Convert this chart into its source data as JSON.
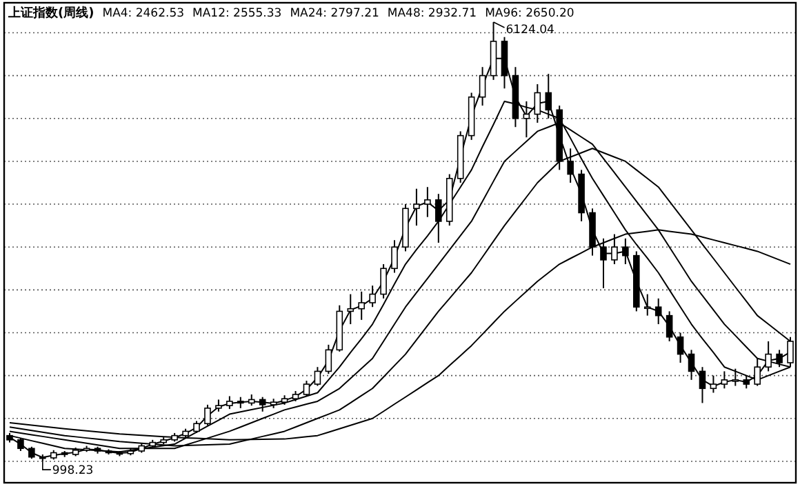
{
  "chart_data": {
    "type": "candlestick",
    "title": "上证指数(周线)",
    "categories": [
      null,
      null,
      null,
      null,
      null,
      null,
      null,
      null,
      null,
      null,
      null,
      null,
      null,
      null,
      null,
      null,
      null,
      null,
      null,
      null,
      null,
      null,
      null,
      null,
      null,
      null,
      null,
      null,
      null,
      null,
      null,
      null,
      null,
      null,
      null,
      null,
      null,
      null,
      null,
      null,
      null,
      null,
      null,
      null,
      null,
      null,
      null,
      null,
      null,
      null,
      null,
      null,
      null,
      null,
      null,
      null,
      null,
      null,
      null,
      null,
      null,
      null,
      null,
      null,
      null,
      null,
      null,
      null,
      null,
      null,
      null,
      null
    ],
    "color": "#000000",
    "ohlc": [
      [
        1300,
        1330,
        1220,
        1250
      ],
      [
        1250,
        1270,
        1120,
        1150
      ],
      [
        1150,
        1170,
        1030,
        1050
      ],
      [
        1050,
        1080,
        998.23,
        1040
      ],
      [
        1040,
        1130,
        1020,
        1100
      ],
      [
        1100,
        1120,
        1050,
        1080
      ],
      [
        1080,
        1160,
        1060,
        1130
      ],
      [
        1130,
        1180,
        1110,
        1150
      ],
      [
        1150,
        1170,
        1090,
        1120
      ],
      [
        1120,
        1140,
        1080,
        1100
      ],
      [
        1100,
        1120,
        1060,
        1090
      ],
      [
        1090,
        1150,
        1070,
        1120
      ],
      [
        1120,
        1210,
        1100,
        1180
      ],
      [
        1180,
        1250,
        1160,
        1220
      ],
      [
        1220,
        1280,
        1200,
        1250
      ],
      [
        1250,
        1330,
        1230,
        1300
      ],
      [
        1300,
        1380,
        1280,
        1350
      ],
      [
        1350,
        1470,
        1330,
        1440
      ],
      [
        1440,
        1660,
        1420,
        1620
      ],
      [
        1620,
        1720,
        1580,
        1650
      ],
      [
        1650,
        1760,
        1610,
        1700
      ],
      [
        1700,
        1750,
        1620,
        1680
      ],
      [
        1680,
        1780,
        1650,
        1720
      ],
      [
        1720,
        1750,
        1580,
        1660
      ],
      [
        1660,
        1730,
        1620,
        1690
      ],
      [
        1690,
        1770,
        1660,
        1730
      ],
      [
        1730,
        1820,
        1700,
        1780
      ],
      [
        1780,
        1940,
        1760,
        1900
      ],
      [
        1900,
        2100,
        1880,
        2050
      ],
      [
        2050,
        2360,
        2020,
        2300
      ],
      [
        2300,
        2820,
        2280,
        2750
      ],
      [
        2750,
        2950,
        2600,
        2780
      ],
      [
        2780,
        2980,
        2650,
        2850
      ],
      [
        2850,
        3050,
        2800,
        2950
      ],
      [
        2950,
        3300,
        2900,
        3250
      ],
      [
        3250,
        3580,
        3200,
        3500
      ],
      [
        3500,
        4000,
        3450,
        3950
      ],
      [
        3950,
        4180,
        3750,
        4000
      ],
      [
        4000,
        4200,
        3850,
        4050
      ],
      [
        4050,
        4120,
        3550,
        3800
      ],
      [
        3800,
        4350,
        3750,
        4300
      ],
      [
        4300,
        4850,
        4250,
        4800
      ],
      [
        4800,
        5300,
        4750,
        5250
      ],
      [
        5250,
        5600,
        5150,
        5500
      ],
      [
        5500,
        6124.04,
        5450,
        5900
      ],
      [
        5900,
        5950,
        5350,
        5500
      ],
      [
        5500,
        5600,
        4900,
        5000
      ],
      [
        5000,
        5200,
        4780,
        5050
      ],
      [
        5050,
        5400,
        4950,
        5300
      ],
      [
        5300,
        5520,
        5000,
        5100
      ],
      [
        5100,
        5150,
        4400,
        4500
      ],
      [
        4500,
        4650,
        4250,
        4350
      ],
      [
        4350,
        4400,
        3800,
        3900
      ],
      [
        3900,
        3950,
        3400,
        3500
      ],
      [
        3500,
        3600,
        3020,
        3350
      ],
      [
        3350,
        3650,
        3300,
        3500
      ],
      [
        3500,
        3600,
        3300,
        3400
      ],
      [
        3400,
        3450,
        2750,
        2800
      ],
      [
        2800,
        2950,
        2700,
        2800
      ],
      [
        2800,
        2900,
        2600,
        2700
      ],
      [
        2700,
        2750,
        2400,
        2450
      ],
      [
        2450,
        2500,
        2150,
        2250
      ],
      [
        2250,
        2300,
        1950,
        2050
      ],
      [
        2050,
        2100,
        1680,
        1850
      ],
      [
        1850,
        2000,
        1800,
        1900
      ],
      [
        1900,
        2050,
        1850,
        1950
      ],
      [
        1950,
        2080,
        1880,
        1950
      ],
      [
        1950,
        2000,
        1850,
        1900
      ],
      [
        1900,
        2200,
        1880,
        2100
      ],
      [
        2100,
        2400,
        2050,
        2250
      ],
      [
        2250,
        2300,
        2100,
        2150
      ],
      [
        2150,
        2450,
        2100,
        2400
      ]
    ],
    "series": [
      {
        "type": "line",
        "color": "#000000",
        "values": [
          1280,
          1200,
          1100,
          1045,
          1070,
          1090,
          1105,
          1140,
          1135,
          1110,
          1095,
          1105,
          1150,
          1200,
          1235,
          1275,
          1325,
          1395,
          1530,
          1635,
          1675,
          1690,
          1700,
          1690,
          1675,
          1710,
          1755,
          1840,
          1975,
          2175,
          2525,
          2765,
          2815,
          2900,
          3100,
          3375,
          3725,
          3975,
          4025,
          3925,
          4050,
          4550,
          5025,
          5375,
          5700,
          5700,
          5250,
          5025,
          5175,
          5200,
          4800,
          4425,
          4125,
          3700,
          3425,
          3425,
          3450,
          3100,
          2800,
          2750,
          2575,
          2350,
          2150,
          1950,
          1875,
          1925,
          1950,
          1925,
          2000,
          2175,
          2200,
          2275
        ]
      },
      {
        "type": "line",
        "color": "#000000",
        "values": [
          1300,
          1270,
          1240,
          1210,
          1180,
          1150,
          1142,
          1134,
          1126,
          1118,
          1110,
          1128,
          1146,
          1164,
          1182,
          1200,
          1270,
          1340,
          1410,
          1480,
          1550,
          1576,
          1602,
          1628,
          1654,
          1680,
          1720,
          1760,
          1800,
          1950,
          2100,
          2270,
          2430,
          2600,
          2830,
          3070,
          3300,
          3470,
          3630,
          3800,
          4000,
          4200,
          4400,
          4670,
          4930,
          5200,
          5170,
          5130,
          5100,
          5050,
          5000,
          4770,
          4530,
          4300,
          4100,
          3900,
          3700,
          3530,
          3370,
          3200,
          3000,
          2800,
          2600,
          2430,
          2270,
          2100,
          2050,
          2000,
          1950,
          2000,
          2050,
          2100
        ]
      },
      {
        "type": "line",
        "color": "#000000",
        "values": [
          1350,
          1330,
          1310,
          1290,
          1270,
          1250,
          1230,
          1210,
          1190,
          1170,
          1150,
          1150,
          1150,
          1150,
          1150,
          1150,
          1190,
          1230,
          1270,
          1310,
          1350,
          1400,
          1450,
          1500,
          1550,
          1600,
          1633,
          1667,
          1700,
          1775,
          1850,
          1967,
          2083,
          2200,
          2400,
          2600,
          2800,
          2967,
          3133,
          3300,
          3467,
          3633,
          3800,
          4033,
          4267,
          4500,
          4617,
          4733,
          4850,
          4900,
          4950,
          4867,
          4783,
          4700,
          4533,
          4367,
          4200,
          4033,
          3867,
          3700,
          3500,
          3300,
          3100,
          2933,
          2767,
          2600,
          2467,
          2333,
          2200,
          2167,
          2133,
          2100
        ]
      },
      {
        "type": "line",
        "color": "#000000",
        "values": [
          1400,
          1380,
          1360,
          1340,
          1320,
          1300,
          1286,
          1272,
          1258,
          1244,
          1230,
          1220,
          1210,
          1200,
          1190,
          1180,
          1184,
          1188,
          1192,
          1196,
          1200,
          1230,
          1260,
          1290,
          1320,
          1350,
          1400,
          1450,
          1500,
          1550,
          1600,
          1683,
          1767,
          1850,
          1983,
          2117,
          2250,
          2417,
          2583,
          2750,
          2900,
          3050,
          3200,
          3383,
          3567,
          3750,
          3917,
          4083,
          4250,
          4375,
          4500,
          4550,
          4600,
          4650,
          4600,
          4550,
          4500,
          4400,
          4300,
          4200,
          4033,
          3867,
          3700,
          3533,
          3367,
          3200,
          3033,
          2867,
          2700,
          2600,
          2500,
          2400
        ]
      },
      {
        "type": "line",
        "color": "#000000",
        "values": [
          1450,
          1436,
          1422,
          1408,
          1394,
          1380,
          1368,
          1356,
          1344,
          1332,
          1320,
          1312,
          1304,
          1296,
          1288,
          1280,
          1274,
          1268,
          1262,
          1256,
          1250,
          1252,
          1254,
          1256,
          1258,
          1260,
          1273,
          1287,
          1300,
          1340,
          1380,
          1420,
          1460,
          1500,
          1583,
          1667,
          1750,
          1833,
          1917,
          2000,
          2117,
          2233,
          2350,
          2483,
          2617,
          2750,
          2867,
          2983,
          3100,
          3200,
          3300,
          3367,
          3433,
          3500,
          3550,
          3600,
          3650,
          3667,
          3683,
          3700,
          3683,
          3667,
          3650,
          3617,
          3583,
          3550,
          3517,
          3483,
          3450,
          3400,
          3350,
          3300
        ]
      }
    ],
    "annotations": [
      "MA4: 2462.53",
      "MA12: 2555.33",
      "MA24: 2797.21",
      "MA48: 2932.71",
      "MA96: 2650.20",
      "6124.04",
      "998.23"
    ],
    "ylim": [
      750,
      6350
    ],
    "yticks": [
      {
        "value": 1000,
        "label": null
      },
      {
        "value": 1500,
        "label": null
      },
      {
        "value": 2000,
        "label": null
      },
      {
        "value": 2500,
        "label": null
      },
      {
        "value": 3000,
        "label": null
      },
      {
        "value": 3500,
        "label": null
      },
      {
        "value": 4000,
        "label": null
      },
      {
        "value": 4500,
        "label": null
      },
      {
        "value": 5000,
        "label": null
      },
      {
        "value": 5500,
        "label": null
      },
      {
        "value": 6000,
        "label": null
      }
    ],
    "grid": "y"
  }
}
